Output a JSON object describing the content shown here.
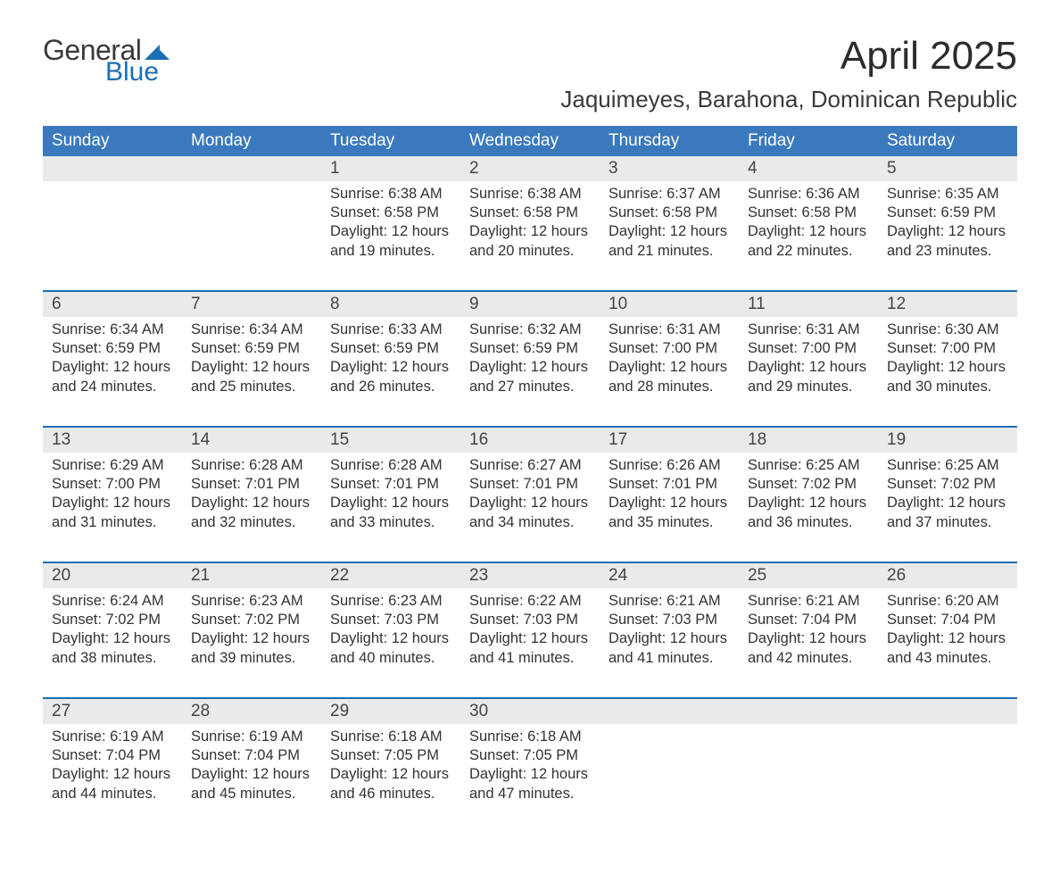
{
  "colors": {
    "header_blue": "#3a79bd",
    "accent_blue": "#1b6fb4",
    "row_gray": "#eaeaea",
    "text_dark": "#333333",
    "page_bg": "#ffffff"
  },
  "logo": {
    "word1": "General",
    "word2": "Blue",
    "mark_color": "#1b6fb4"
  },
  "title": {
    "month": "April 2025",
    "location": "Jaquimeyes, Barahona, Dominican Republic"
  },
  "dow": [
    "Sunday",
    "Monday",
    "Tuesday",
    "Wednesday",
    "Thursday",
    "Friday",
    "Saturday"
  ],
  "labels": {
    "sunrise": "Sunrise:",
    "sunset": "Sunset:",
    "daylight": "Daylight:"
  },
  "weeks": [
    [
      null,
      null,
      {
        "n": "1",
        "sunrise": "6:38 AM",
        "sunset": "6:58 PM",
        "daylight": "12 hours and 19 minutes."
      },
      {
        "n": "2",
        "sunrise": "6:38 AM",
        "sunset": "6:58 PM",
        "daylight": "12 hours and 20 minutes."
      },
      {
        "n": "3",
        "sunrise": "6:37 AM",
        "sunset": "6:58 PM",
        "daylight": "12 hours and 21 minutes."
      },
      {
        "n": "4",
        "sunrise": "6:36 AM",
        "sunset": "6:58 PM",
        "daylight": "12 hours and 22 minutes."
      },
      {
        "n": "5",
        "sunrise": "6:35 AM",
        "sunset": "6:59 PM",
        "daylight": "12 hours and 23 minutes."
      }
    ],
    [
      {
        "n": "6",
        "sunrise": "6:34 AM",
        "sunset": "6:59 PM",
        "daylight": "12 hours and 24 minutes."
      },
      {
        "n": "7",
        "sunrise": "6:34 AM",
        "sunset": "6:59 PM",
        "daylight": "12 hours and 25 minutes."
      },
      {
        "n": "8",
        "sunrise": "6:33 AM",
        "sunset": "6:59 PM",
        "daylight": "12 hours and 26 minutes."
      },
      {
        "n": "9",
        "sunrise": "6:32 AM",
        "sunset": "6:59 PM",
        "daylight": "12 hours and 27 minutes."
      },
      {
        "n": "10",
        "sunrise": "6:31 AM",
        "sunset": "7:00 PM",
        "daylight": "12 hours and 28 minutes."
      },
      {
        "n": "11",
        "sunrise": "6:31 AM",
        "sunset": "7:00 PM",
        "daylight": "12 hours and 29 minutes."
      },
      {
        "n": "12",
        "sunrise": "6:30 AM",
        "sunset": "7:00 PM",
        "daylight": "12 hours and 30 minutes."
      }
    ],
    [
      {
        "n": "13",
        "sunrise": "6:29 AM",
        "sunset": "7:00 PM",
        "daylight": "12 hours and 31 minutes."
      },
      {
        "n": "14",
        "sunrise": "6:28 AM",
        "sunset": "7:01 PM",
        "daylight": "12 hours and 32 minutes."
      },
      {
        "n": "15",
        "sunrise": "6:28 AM",
        "sunset": "7:01 PM",
        "daylight": "12 hours and 33 minutes."
      },
      {
        "n": "16",
        "sunrise": "6:27 AM",
        "sunset": "7:01 PM",
        "daylight": "12 hours and 34 minutes."
      },
      {
        "n": "17",
        "sunrise": "6:26 AM",
        "sunset": "7:01 PM",
        "daylight": "12 hours and 35 minutes."
      },
      {
        "n": "18",
        "sunrise": "6:25 AM",
        "sunset": "7:02 PM",
        "daylight": "12 hours and 36 minutes."
      },
      {
        "n": "19",
        "sunrise": "6:25 AM",
        "sunset": "7:02 PM",
        "daylight": "12 hours and 37 minutes."
      }
    ],
    [
      {
        "n": "20",
        "sunrise": "6:24 AM",
        "sunset": "7:02 PM",
        "daylight": "12 hours and 38 minutes."
      },
      {
        "n": "21",
        "sunrise": "6:23 AM",
        "sunset": "7:02 PM",
        "daylight": "12 hours and 39 minutes."
      },
      {
        "n": "22",
        "sunrise": "6:23 AM",
        "sunset": "7:03 PM",
        "daylight": "12 hours and 40 minutes."
      },
      {
        "n": "23",
        "sunrise": "6:22 AM",
        "sunset": "7:03 PM",
        "daylight": "12 hours and 41 minutes."
      },
      {
        "n": "24",
        "sunrise": "6:21 AM",
        "sunset": "7:03 PM",
        "daylight": "12 hours and 41 minutes."
      },
      {
        "n": "25",
        "sunrise": "6:21 AM",
        "sunset": "7:04 PM",
        "daylight": "12 hours and 42 minutes."
      },
      {
        "n": "26",
        "sunrise": "6:20 AM",
        "sunset": "7:04 PM",
        "daylight": "12 hours and 43 minutes."
      }
    ],
    [
      {
        "n": "27",
        "sunrise": "6:19 AM",
        "sunset": "7:04 PM",
        "daylight": "12 hours and 44 minutes."
      },
      {
        "n": "28",
        "sunrise": "6:19 AM",
        "sunset": "7:04 PM",
        "daylight": "12 hours and 45 minutes."
      },
      {
        "n": "29",
        "sunrise": "6:18 AM",
        "sunset": "7:05 PM",
        "daylight": "12 hours and 46 minutes."
      },
      {
        "n": "30",
        "sunrise": "6:18 AM",
        "sunset": "7:05 PM",
        "daylight": "12 hours and 47 minutes."
      },
      null,
      null,
      null
    ]
  ]
}
